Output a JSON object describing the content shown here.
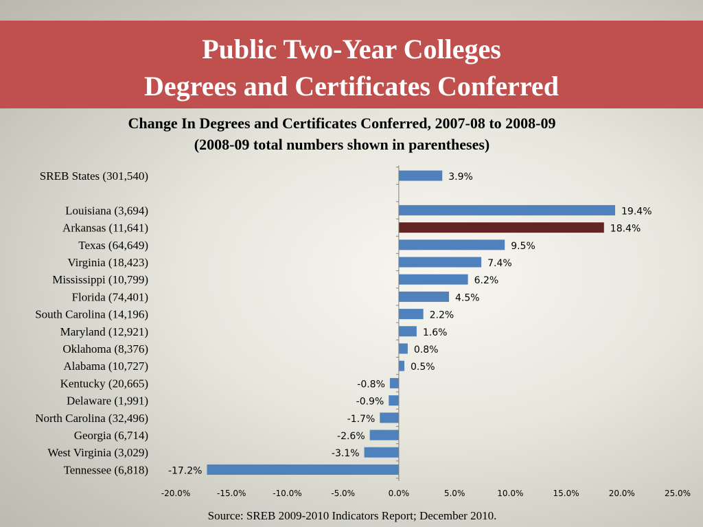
{
  "header": {
    "title_line1": "Public Two-Year Colleges",
    "title_line2": "Degrees and Certificates Conferred"
  },
  "chart_data": {
    "type": "bar",
    "orientation": "horizontal",
    "title": "Change In Degrees and Certificates Conferred, 2007-08 to 2008-09",
    "subtitle": "(2008-09 total numbers shown in parentheses)",
    "categories": [
      "SREB States (301,540)",
      "Louisiana (3,694)",
      "Arkansas (11,641)",
      "Texas (64,649)",
      "Virginia (18,423)",
      "Mississippi (10,799)",
      "Florida (74,401)",
      "South Carolina (14,196)",
      "Maryland (12,921)",
      "Oklahoma (8,376)",
      "Alabama (10,727)",
      "Kentucky (20,665)",
      "Delaware (1,991)",
      "North Carolina (32,496)",
      "Georgia (6,714)",
      "West Virginia (3,029)",
      "Tennessee (6,818)"
    ],
    "values": [
      3.9,
      19.4,
      18.4,
      9.5,
      7.4,
      6.2,
      4.5,
      2.2,
      1.6,
      0.8,
      0.5,
      -0.8,
      -0.9,
      -1.7,
      -2.6,
      -3.1,
      -17.2
    ],
    "data_labels": [
      "3.9%",
      "19.4%",
      "18.4%",
      "9.5%",
      "7.4%",
      "6.2%",
      "4.5%",
      "2.2%",
      "1.6%",
      "0.8%",
      "0.5%",
      "-0.8%",
      "-0.9%",
      "-1.7%",
      "-2.6%",
      "-3.1%",
      "-17.2%"
    ],
    "highlight_category": "Arkansas (11,641)",
    "xlim": [
      -20,
      25
    ],
    "x_ticks": [
      -20,
      -15,
      -10,
      -5,
      0,
      5,
      10,
      15,
      20,
      25
    ],
    "x_tick_labels": [
      "-20.0%",
      "-15.0%",
      "-10.0%",
      "-5.0%",
      "0.0%",
      "5.0%",
      "10.0%",
      "15.0%",
      "20.0%",
      "25.0%"
    ],
    "grid": false,
    "legend": "none",
    "colors": {
      "bar": "#4f81bd",
      "highlight": "#632523"
    }
  },
  "footer": {
    "source": "Source: SREB 2009-2010 Indicators Report; December 2010."
  }
}
